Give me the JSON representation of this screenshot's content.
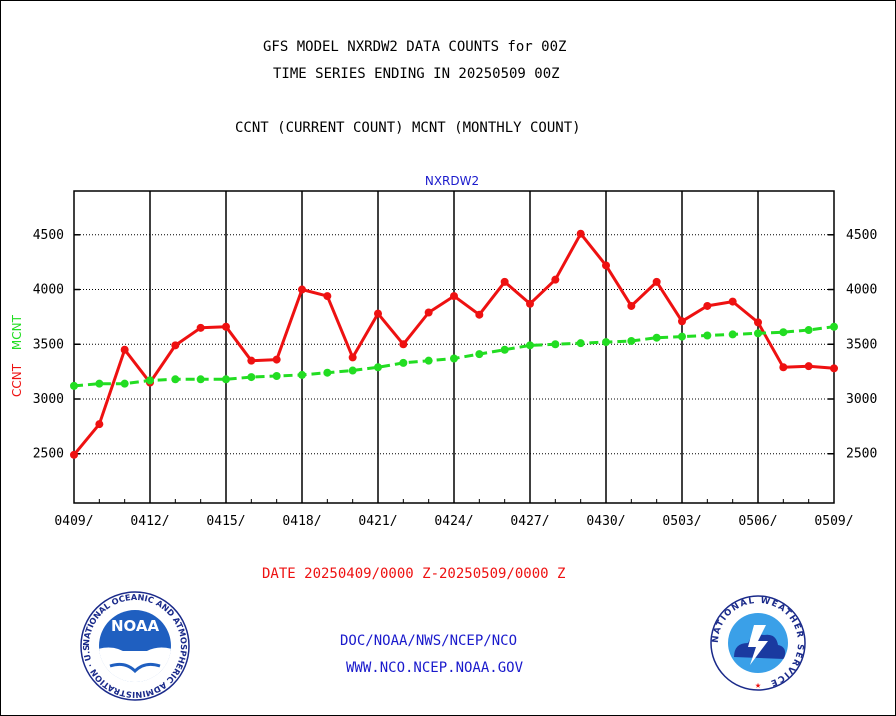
{
  "header": {
    "title_line1": "GFS MODEL NXRDW2 DATA COUNTS for 00Z",
    "title_line2": "TIME SERIES ENDING IN 20250509 00Z",
    "title_line3": "CCNT (CURRENT COUNT) MCNT (MONTHLY COUNT)"
  },
  "footer": {
    "date_range": "DATE 20250409/0000 Z-20250509/0000 Z",
    "org_line": "DOC/NOAA/NWS/NCEP/NCO",
    "url_line": "WWW.NCO.NCEP.NOAA.GOV"
  },
  "logos": {
    "noaa": {
      "label": "NOAA",
      "ring_text": "NATIONAL OCEANIC AND ATMOSPHERIC ADMINISTRATION · U.S. DEPARTMENT OF COMMERCE ·"
    },
    "nws": {
      "ring_text": "NATIONAL WEATHER SERVICE"
    }
  },
  "colors": {
    "ccnt": "#ee1111",
    "mcnt": "#22dd22",
    "chart_title": "#1a1acc",
    "footer_text": "#1a1acc",
    "date_text": "#ee1111"
  },
  "chart_data": {
    "type": "line",
    "title": "NXRDW2",
    "ylabel": "CCNT  MCNT",
    "ylabel_parts": [
      {
        "text": "CCNT",
        "color": "#ee1111"
      },
      {
        "text": "MCNT",
        "color": "#22dd22"
      }
    ],
    "ylim": [
      2050,
      4900
    ],
    "yticks": [
      2500,
      3000,
      3500,
      4000,
      4500
    ],
    "xlim": [
      0,
      30
    ],
    "xticks": [
      {
        "x": 0,
        "label": "0409/"
      },
      {
        "x": 3,
        "label": "0412/"
      },
      {
        "x": 6,
        "label": "0415/"
      },
      {
        "x": 9,
        "label": "0418/"
      },
      {
        "x": 12,
        "label": "0421/"
      },
      {
        "x": 15,
        "label": "0424/"
      },
      {
        "x": 18,
        "label": "0427/"
      },
      {
        "x": 21,
        "label": "0430/"
      },
      {
        "x": 24,
        "label": "0503/"
      },
      {
        "x": 27,
        "label": "0506/"
      },
      {
        "x": 30,
        "label": "0509/"
      }
    ],
    "grid": true,
    "series": [
      {
        "name": "CCNT",
        "color": "#ee1111",
        "style": "solid",
        "x": [
          0,
          1,
          2,
          3,
          4,
          5,
          6,
          7,
          8,
          9,
          10,
          11,
          12,
          13,
          14,
          15,
          16,
          17,
          18,
          19,
          20,
          21,
          22,
          23,
          24,
          25,
          26,
          27,
          28,
          29,
          30
        ],
        "values": [
          2490,
          2770,
          3450,
          3150,
          3490,
          3650,
          3660,
          3350,
          3360,
          4000,
          3940,
          3380,
          3780,
          3500,
          3790,
          3940,
          3770,
          4070,
          3870,
          4090,
          4510,
          4220,
          3850,
          4070,
          3710,
          3850,
          3890,
          3700,
          3290,
          3300,
          3280
        ]
      },
      {
        "name": "MCNT",
        "color": "#22dd22",
        "style": "dashed",
        "x": [
          0,
          1,
          2,
          3,
          4,
          5,
          6,
          7,
          8,
          9,
          10,
          11,
          12,
          13,
          14,
          15,
          16,
          17,
          18,
          19,
          20,
          21,
          22,
          23,
          24,
          25,
          26,
          27,
          28,
          29,
          30
        ],
        "values": [
          3120,
          3140,
          3140,
          3170,
          3180,
          3180,
          3180,
          3200,
          3210,
          3220,
          3240,
          3260,
          3290,
          3330,
          3350,
          3370,
          3410,
          3450,
          3490,
          3500,
          3510,
          3520,
          3530,
          3560,
          3570,
          3580,
          3590,
          3600,
          3610,
          3630,
          3660
        ]
      }
    ]
  }
}
